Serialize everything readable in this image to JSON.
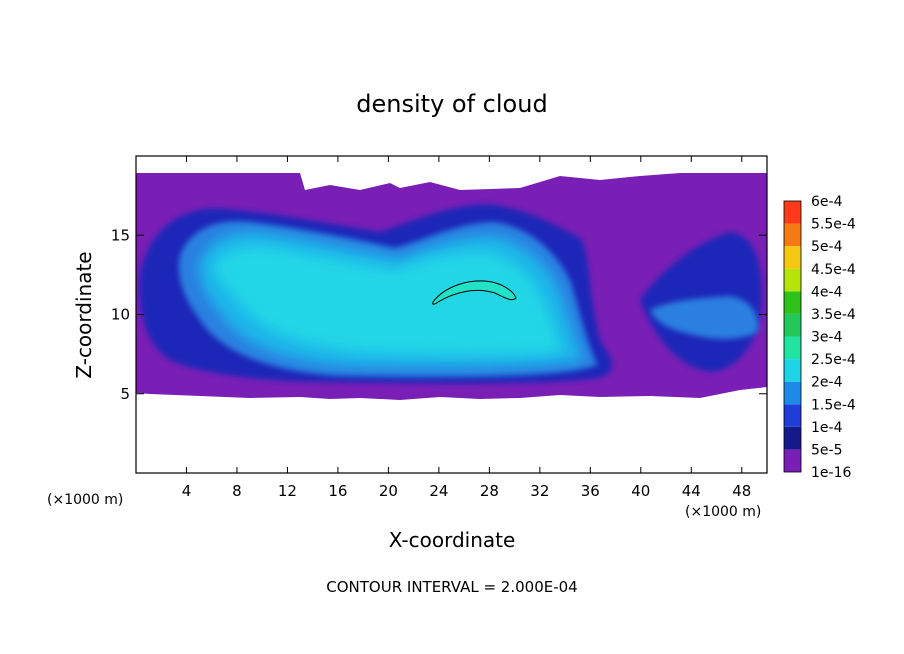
{
  "chart_data": {
    "type": "heatmap",
    "title": "density of cloud",
    "xlabel": "X-coordinate",
    "ylabel": "Z-coordinate",
    "x_unit_left": "(×1000 m)",
    "x_unit_right": "(×1000 m)",
    "x_ticks": [
      4,
      8,
      12,
      16,
      20,
      24,
      28,
      32,
      36,
      40,
      44,
      48
    ],
    "y_ticks": [
      5,
      10,
      15
    ],
    "xlim": [
      0,
      50
    ],
    "ylim": [
      0,
      20
    ],
    "footer": "CONTOUR INTERVAL = 2.000E-04",
    "colorbar": {
      "labels": [
        "1e-16",
        "5e-5",
        "1e-4",
        "1.5e-4",
        "2e-4",
        "2.5e-4",
        "3e-4",
        "3.5e-4",
        "4e-4",
        "4.5e-4",
        "5e-4",
        "5.5e-4",
        "6e-4"
      ],
      "colors": [
        "#7a1fb5",
        "#16198a",
        "#1f3dd8",
        "#1e8ae8",
        "#1fd3e6",
        "#22e3a0",
        "#22c85a",
        "#2ec21a",
        "#b4e40c",
        "#f5c712",
        "#f57a12",
        "#ff3a1a",
        "#f07070"
      ]
    },
    "grid": false
  }
}
